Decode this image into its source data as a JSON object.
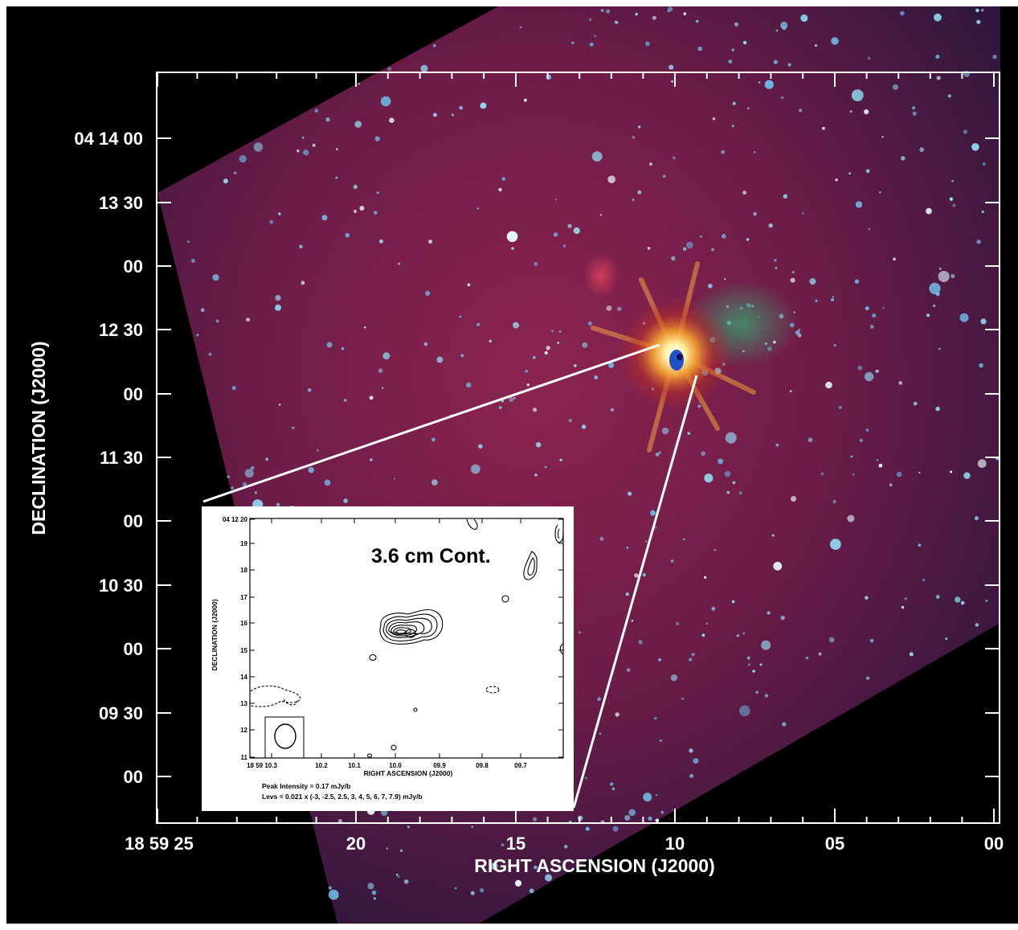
{
  "main_plot": {
    "y_axis_title": "DECLINATION (J2000)",
    "x_axis_title": "RIGHT ASCENSION (J2000)",
    "y_tick_labels": [
      "04 14 00",
      "13 30",
      "00",
      "12 30",
      "00",
      "11 30",
      "00",
      "10 30",
      "00",
      "09 30",
      "00"
    ],
    "x_tick_labels": [
      "18 59 25",
      "20",
      "15",
      "10",
      "05",
      "00"
    ],
    "colors": {
      "background": "#000000",
      "nebula": "#7a1f45",
      "stars": "#8fd8f0",
      "source_core": "#ffd060"
    }
  },
  "inset": {
    "title": "3.6 cm Cont.",
    "y_axis_title": "DECLINATION (J2000)",
    "x_axis_title": "RIGHT ASCENSION (J2000)",
    "y_tick_labels": [
      "04 12 20",
      "19",
      "18",
      "17",
      "16",
      "15",
      "14",
      "13",
      "12",
      "11"
    ],
    "x_tick_labels": [
      "18 59 10.3",
      "10.2",
      "10.1",
      "10.0",
      "09.9",
      "09.8",
      "09.7"
    ],
    "peak_intensity": "Peak Intensity =  0.17 mJy/b",
    "levels": "Levs = 0.021 x (-3, -2.5, 2.5, 3, 4, 5, 6, 7, 7.9) mJy/b"
  }
}
